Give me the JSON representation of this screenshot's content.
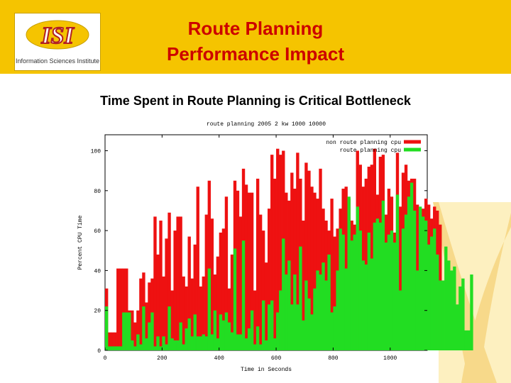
{
  "header": {
    "bg_color": "#f5c400",
    "title_line1": "Route Planning",
    "title_line2": "Performance Impact",
    "title_color": "#cc0000",
    "logo": {
      "mark": "ISI",
      "name": "Information Sciences Institute"
    }
  },
  "subtitle": "Time Spent in Route Planning is Critical Bottleneck",
  "chart_data": {
    "type": "bar",
    "title": "route planning 2005 2 kw 1000 10000",
    "xlabel": "Time in Seconds",
    "ylabel": "Percent CPU Time",
    "xlim": [
      0,
      1130
    ],
    "ylim": [
      0,
      108
    ],
    "x_ticks": [
      0,
      200,
      400,
      600,
      800,
      1000
    ],
    "y_ticks": [
      0,
      20,
      40,
      60,
      80,
      100
    ],
    "legend_position": "top-right",
    "bin_width_seconds": 10,
    "series": [
      {
        "name": "non route planning cpu",
        "color": "#ee1111",
        "values": [
          31,
          9,
          9,
          9,
          41,
          41,
          41,
          41,
          20,
          20,
          14,
          20,
          36,
          39,
          24,
          34,
          36,
          67,
          48,
          65,
          37,
          56,
          69,
          30,
          60,
          67,
          67,
          37,
          32,
          57,
          36,
          53,
          82,
          32,
          37,
          68,
          85,
          66,
          38,
          47,
          59,
          61,
          77,
          31,
          48,
          85,
          80,
          67,
          91,
          83,
          79,
          79,
          30,
          86,
          68,
          60,
          44,
          71,
          98,
          86,
          101,
          98,
          100,
          79,
          75,
          89,
          81,
          99,
          86,
          65,
          94,
          90,
          82,
          79,
          76,
          91,
          71,
          65,
          60,
          76,
          57,
          61,
          71,
          81,
          82,
          76,
          65,
          63,
          100,
          93,
          82,
          86,
          92,
          93,
          101,
          78,
          97,
          98,
          68,
          81,
          77,
          59,
          99,
          72,
          89,
          93,
          85,
          86,
          86,
          73,
          70,
          71,
          76,
          73,
          66,
          72,
          70,
          63
        ]
      },
      {
        "name": "route planning cpu",
        "color": "#22dd22",
        "values": [
          22,
          2,
          2,
          2,
          2,
          2,
          19,
          19,
          19,
          5,
          2,
          8,
          3,
          22,
          6,
          14,
          19,
          2,
          7,
          2,
          7,
          3,
          22,
          6,
          5,
          5,
          14,
          3,
          11,
          16,
          7,
          18,
          7,
          7,
          8,
          7,
          41,
          8,
          20,
          6,
          18,
          15,
          19,
          14,
          9,
          51,
          8,
          8,
          55,
          6,
          11,
          20,
          3,
          12,
          3,
          25,
          5,
          23,
          25,
          6,
          19,
          30,
          56,
          38,
          45,
          23,
          38,
          23,
          52,
          15,
          35,
          26,
          18,
          31,
          40,
          38,
          44,
          35,
          48,
          19,
          22,
          40,
          61,
          58,
          41,
          77,
          55,
          58,
          72,
          60,
          45,
          43,
          59,
          46,
          64,
          66,
          64,
          75,
          54,
          58,
          60,
          54,
          78,
          30,
          61,
          68,
          77,
          84,
          70,
          40,
          72,
          67,
          65,
          53,
          57,
          61,
          48,
          35,
          35,
          52,
          45,
          40,
          42,
          23,
          32,
          36,
          10,
          10,
          38
        ]
      }
    ]
  }
}
